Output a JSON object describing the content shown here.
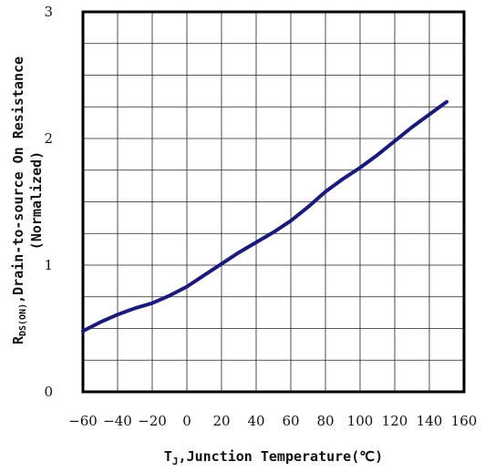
{
  "chart_data": {
    "type": "line",
    "title": "",
    "xlabel": {
      "main": "T",
      "sub": "J",
      "rest": ",Junction Temperature(℃)"
    },
    "ylabel": {
      "line1_main": "R",
      "line1_sub": "DS(ON)",
      "line1_rest": ",Drain-to-source On Resistance",
      "line2": "(Normalized)"
    },
    "xlim": [
      -60,
      160
    ],
    "ylim": [
      0,
      3
    ],
    "xticks": [
      -60,
      -40,
      -20,
      0,
      20,
      40,
      60,
      80,
      100,
      120,
      140,
      160
    ],
    "xtick_labels": [
      "−60",
      "−40",
      "−20",
      "0",
      "20",
      "40",
      "60",
      "80",
      "100",
      "120",
      "140",
      "160"
    ],
    "yticks": [
      0,
      1,
      2,
      3
    ],
    "ytick_labels": [
      "0",
      "1",
      "2",
      "3"
    ],
    "grid": true,
    "grid_x_step": 20,
    "grid_y_step": 0.25,
    "series": [
      {
        "color": "#1a1a7a",
        "x": [
          -60,
          -50,
          -40,
          -30,
          -20,
          -10,
          0,
          10,
          20,
          30,
          40,
          50,
          60,
          70,
          80,
          90,
          100,
          110,
          120,
          130,
          140,
          150
        ],
        "y": [
          0.48,
          0.55,
          0.61,
          0.66,
          0.7,
          0.76,
          0.83,
          0.92,
          1.01,
          1.1,
          1.18,
          1.26,
          1.35,
          1.46,
          1.58,
          1.68,
          1.77,
          1.87,
          1.98,
          2.09,
          2.19,
          2.29
        ]
      }
    ]
  }
}
